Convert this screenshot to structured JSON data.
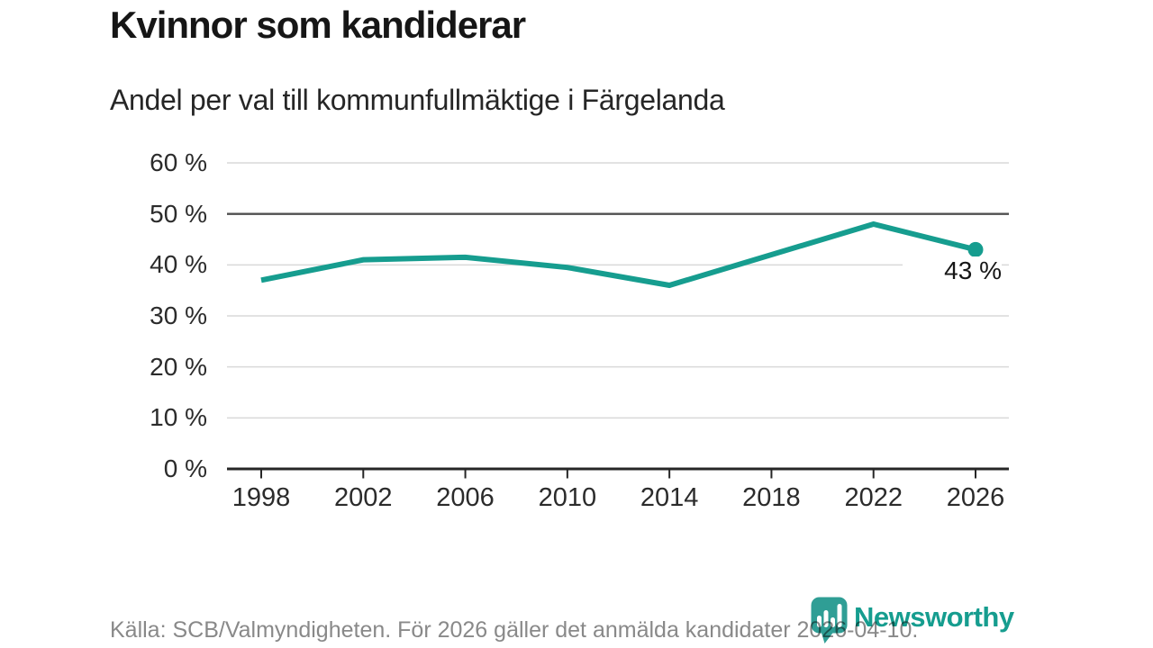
{
  "chart_data": {
    "type": "line",
    "title": "Kvinnor som kandiderar",
    "subtitle": "Andel per val till kommunfullmäktige i Färgelanda",
    "x_labels": [
      "1998",
      "2002",
      "2006",
      "2010",
      "2014",
      "2018",
      "2022",
      "2026"
    ],
    "values": [
      37,
      41,
      41.5,
      39.5,
      36,
      42,
      48,
      43
    ],
    "ylim": [
      0,
      60
    ],
    "yticks": [
      {
        "value": 60,
        "label": "60 %"
      },
      {
        "value": 50,
        "label": "50 %"
      },
      {
        "value": 40,
        "label": "40 %"
      },
      {
        "value": 30,
        "label": "30 %"
      },
      {
        "value": 20,
        "label": "20 %"
      },
      {
        "value": 10,
        "label": "10 %"
      },
      {
        "value": 0,
        "label": "0 %"
      }
    ],
    "grid": true,
    "highlight_gridline_value": 50,
    "legend": "none",
    "annotation": {
      "text": "43 %",
      "x_label": "2026",
      "value": 43
    },
    "colors": {
      "line": "#169d8f",
      "marker": "#169d8f",
      "grid": "#d9d9d9",
      "grid_strong": "#4f4f4f",
      "axis": "#262626",
      "tick": "#2b2b2b"
    }
  },
  "footer": {
    "source": "Källa: SCB/Valmyndigheten. För 2026 gäller det anmälda kandidater 2026-04-10.",
    "brand": "Newsworthy",
    "brand_color": "#169d8f",
    "brand_icon": "chart-speech-bubble",
    "brand_icon_color": "#2f9e95"
  }
}
